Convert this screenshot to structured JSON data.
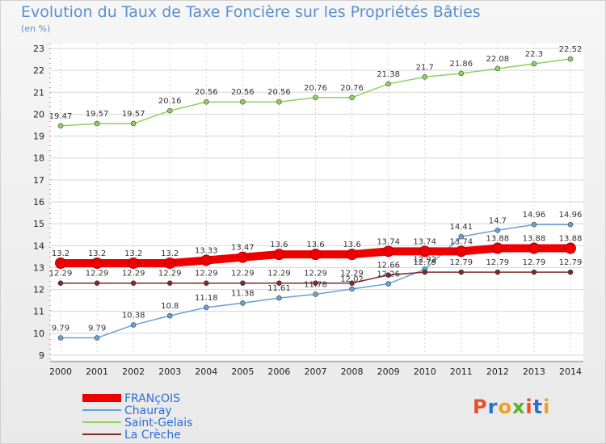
{
  "header": {
    "title": "Evolution du Taux de Taxe Foncière sur les Propriétés Bâties",
    "unit": "(en %)"
  },
  "logo": {
    "text": "Proxiti",
    "letters": [
      "P",
      "r",
      "o",
      "x",
      "i",
      "t",
      "i"
    ],
    "colors": [
      "#e8502b",
      "#2a6fd6",
      "#f0a020",
      "#5ab030",
      "#e8502b",
      "#2a6fd6",
      "#f0a020"
    ]
  },
  "chart_data": {
    "type": "line",
    "x": [
      "2000",
      "2001",
      "2002",
      "2003",
      "2004",
      "2005",
      "2006",
      "2007",
      "2008",
      "2009",
      "2010",
      "2011",
      "2012",
      "2013",
      "2014"
    ],
    "ylim": [
      9,
      23
    ],
    "yticks": [
      9,
      10,
      11,
      12,
      13,
      14,
      15,
      16,
      17,
      18,
      19,
      20,
      21,
      22,
      23
    ],
    "grid": true,
    "legend_placement": "bottom-left",
    "series": [
      {
        "name": "FRANçOIS",
        "color": "#ee0000",
        "width": 10,
        "values": [
          13.2,
          13.2,
          13.2,
          13.2,
          13.33,
          13.47,
          13.6,
          13.6,
          13.6,
          13.74,
          13.74,
          13.74,
          13.88,
          13.88,
          13.88
        ],
        "labels": [
          "13.2",
          "13.2",
          "13.2",
          "13.2",
          "13.33",
          "13.47",
          "13.6",
          "13.6",
          "13.6",
          "13.74",
          "13.74",
          "13.74",
          "13.88",
          "13.88",
          "13.88"
        ]
      },
      {
        "name": "Chauray",
        "color": "#6aa0d6",
        "width": 1.5,
        "values": [
          9.79,
          9.79,
          10.38,
          10.8,
          11.18,
          11.38,
          11.61,
          11.78,
          12.02,
          12.26,
          12.92,
          14.41,
          14.7,
          14.96,
          14.96
        ],
        "labels": [
          "9.79",
          "9.79",
          "10.38",
          "10.8",
          "11.18",
          "11.38",
          "11.61",
          "11.78",
          "12.02",
          "12.26",
          "12.92",
          "14.41",
          "14.7",
          "14.96",
          "14.96"
        ]
      },
      {
        "name": "Saint-Gelais",
        "color": "#8fd160",
        "width": 1.5,
        "values": [
          19.47,
          19.57,
          19.57,
          20.16,
          20.56,
          20.56,
          20.56,
          20.76,
          20.76,
          21.38,
          21.7,
          21.86,
          22.08,
          22.3,
          22.52
        ],
        "labels": [
          "19.47",
          "19.57",
          "19.57",
          "20.16",
          "20.56",
          "20.56",
          "20.56",
          "20.76",
          "20.76",
          "21.38",
          "21.7",
          "21.86",
          "22.08",
          "22.3",
          "22.52"
        ]
      },
      {
        "name": "La Crèche",
        "color": "#7a2a2a",
        "width": 1.5,
        "values": [
          12.29,
          12.29,
          12.29,
          12.29,
          12.29,
          12.29,
          12.29,
          12.29,
          12.29,
          12.66,
          12.79,
          12.79,
          12.79,
          12.79,
          12.79
        ],
        "labels": [
          "12.29",
          "12.29",
          "12.29",
          "12.29",
          "12.29",
          "12.29",
          "12.29",
          "12.29",
          "12.29",
          "12.66",
          "12.79",
          "12.79",
          "12.79",
          "12.79",
          "12.79"
        ]
      }
    ]
  }
}
